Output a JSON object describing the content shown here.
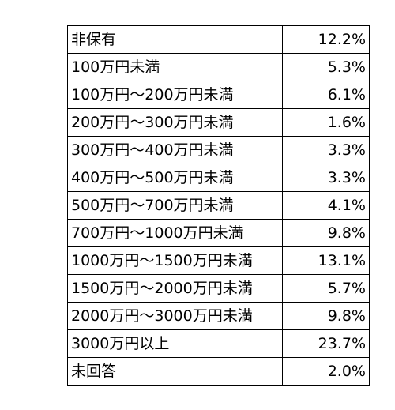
{
  "table": {
    "rows": [
      {
        "label": "非保有",
        "value": "12.2%"
      },
      {
        "label": "100万円未満",
        "value": "5.3%"
      },
      {
        "label": "100万円～200万円未満",
        "value": "6.1%"
      },
      {
        "label": "200万円～300万円未満",
        "value": "1.6%"
      },
      {
        "label": "300万円～400万円未満",
        "value": "3.3%"
      },
      {
        "label": "400万円～500万円未満",
        "value": "3.3%"
      },
      {
        "label": "500万円～700万円未満",
        "value": "4.1%"
      },
      {
        "label": "700万円～1000万円未満",
        "value": "9.8%"
      },
      {
        "label": "1000万円～1500万円未満",
        "value": "13.1%"
      },
      {
        "label": "1500万円～2000万円未満",
        "value": "5.7%"
      },
      {
        "label": "2000万円～3000万円未満",
        "value": "9.8%"
      },
      {
        "label": "3000万円以上",
        "value": "23.7%"
      },
      {
        "label": "未回答",
        "value": "2.0%"
      }
    ]
  }
}
